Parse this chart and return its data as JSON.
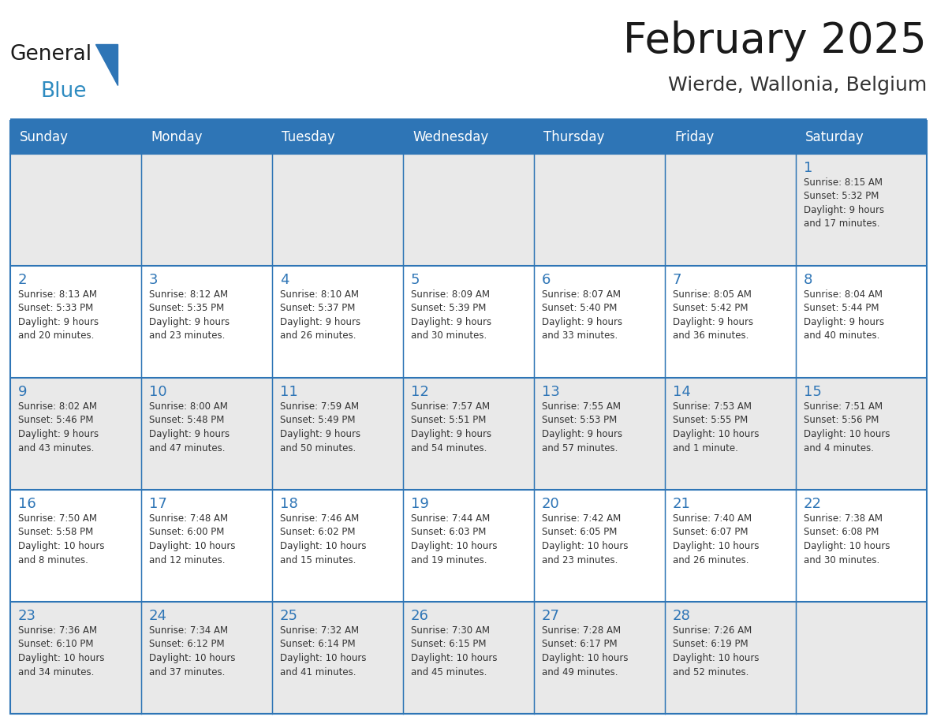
{
  "title": "February 2025",
  "subtitle": "Wierde, Wallonia, Belgium",
  "header_bg": "#2E75B6",
  "header_text_color": "#FFFFFF",
  "cell_bg_light": "#E9E9E9",
  "cell_bg_white": "#FFFFFF",
  "border_color": "#2E75B6",
  "title_color": "#1a1a1a",
  "subtitle_color": "#333333",
  "day_number_color": "#2E75B6",
  "cell_text_color": "#333333",
  "days_of_week": [
    "Sunday",
    "Monday",
    "Tuesday",
    "Wednesday",
    "Thursday",
    "Friday",
    "Saturday"
  ],
  "weeks": [
    [
      {
        "day": "",
        "info": ""
      },
      {
        "day": "",
        "info": ""
      },
      {
        "day": "",
        "info": ""
      },
      {
        "day": "",
        "info": ""
      },
      {
        "day": "",
        "info": ""
      },
      {
        "day": "",
        "info": ""
      },
      {
        "day": "1",
        "info": "Sunrise: 8:15 AM\nSunset: 5:32 PM\nDaylight: 9 hours\nand 17 minutes."
      }
    ],
    [
      {
        "day": "2",
        "info": "Sunrise: 8:13 AM\nSunset: 5:33 PM\nDaylight: 9 hours\nand 20 minutes."
      },
      {
        "day": "3",
        "info": "Sunrise: 8:12 AM\nSunset: 5:35 PM\nDaylight: 9 hours\nand 23 minutes."
      },
      {
        "day": "4",
        "info": "Sunrise: 8:10 AM\nSunset: 5:37 PM\nDaylight: 9 hours\nand 26 minutes."
      },
      {
        "day": "5",
        "info": "Sunrise: 8:09 AM\nSunset: 5:39 PM\nDaylight: 9 hours\nand 30 minutes."
      },
      {
        "day": "6",
        "info": "Sunrise: 8:07 AM\nSunset: 5:40 PM\nDaylight: 9 hours\nand 33 minutes."
      },
      {
        "day": "7",
        "info": "Sunrise: 8:05 AM\nSunset: 5:42 PM\nDaylight: 9 hours\nand 36 minutes."
      },
      {
        "day": "8",
        "info": "Sunrise: 8:04 AM\nSunset: 5:44 PM\nDaylight: 9 hours\nand 40 minutes."
      }
    ],
    [
      {
        "day": "9",
        "info": "Sunrise: 8:02 AM\nSunset: 5:46 PM\nDaylight: 9 hours\nand 43 minutes."
      },
      {
        "day": "10",
        "info": "Sunrise: 8:00 AM\nSunset: 5:48 PM\nDaylight: 9 hours\nand 47 minutes."
      },
      {
        "day": "11",
        "info": "Sunrise: 7:59 AM\nSunset: 5:49 PM\nDaylight: 9 hours\nand 50 minutes."
      },
      {
        "day": "12",
        "info": "Sunrise: 7:57 AM\nSunset: 5:51 PM\nDaylight: 9 hours\nand 54 minutes."
      },
      {
        "day": "13",
        "info": "Sunrise: 7:55 AM\nSunset: 5:53 PM\nDaylight: 9 hours\nand 57 minutes."
      },
      {
        "day": "14",
        "info": "Sunrise: 7:53 AM\nSunset: 5:55 PM\nDaylight: 10 hours\nand 1 minute."
      },
      {
        "day": "15",
        "info": "Sunrise: 7:51 AM\nSunset: 5:56 PM\nDaylight: 10 hours\nand 4 minutes."
      }
    ],
    [
      {
        "day": "16",
        "info": "Sunrise: 7:50 AM\nSunset: 5:58 PM\nDaylight: 10 hours\nand 8 minutes."
      },
      {
        "day": "17",
        "info": "Sunrise: 7:48 AM\nSunset: 6:00 PM\nDaylight: 10 hours\nand 12 minutes."
      },
      {
        "day": "18",
        "info": "Sunrise: 7:46 AM\nSunset: 6:02 PM\nDaylight: 10 hours\nand 15 minutes."
      },
      {
        "day": "19",
        "info": "Sunrise: 7:44 AM\nSunset: 6:03 PM\nDaylight: 10 hours\nand 19 minutes."
      },
      {
        "day": "20",
        "info": "Sunrise: 7:42 AM\nSunset: 6:05 PM\nDaylight: 10 hours\nand 23 minutes."
      },
      {
        "day": "21",
        "info": "Sunrise: 7:40 AM\nSunset: 6:07 PM\nDaylight: 10 hours\nand 26 minutes."
      },
      {
        "day": "22",
        "info": "Sunrise: 7:38 AM\nSunset: 6:08 PM\nDaylight: 10 hours\nand 30 minutes."
      }
    ],
    [
      {
        "day": "23",
        "info": "Sunrise: 7:36 AM\nSunset: 6:10 PM\nDaylight: 10 hours\nand 34 minutes."
      },
      {
        "day": "24",
        "info": "Sunrise: 7:34 AM\nSunset: 6:12 PM\nDaylight: 10 hours\nand 37 minutes."
      },
      {
        "day": "25",
        "info": "Sunrise: 7:32 AM\nSunset: 6:14 PM\nDaylight: 10 hours\nand 41 minutes."
      },
      {
        "day": "26",
        "info": "Sunrise: 7:30 AM\nSunset: 6:15 PM\nDaylight: 10 hours\nand 45 minutes."
      },
      {
        "day": "27",
        "info": "Sunrise: 7:28 AM\nSunset: 6:17 PM\nDaylight: 10 hours\nand 49 minutes."
      },
      {
        "day": "28",
        "info": "Sunrise: 7:26 AM\nSunset: 6:19 PM\nDaylight: 10 hours\nand 52 minutes."
      },
      {
        "day": "",
        "info": ""
      }
    ]
  ],
  "logo_text_general": "General",
  "logo_text_blue": "Blue",
  "logo_color_general": "#1a1a1a",
  "logo_color_blue": "#2E8BC0",
  "logo_triangle_color": "#2E75B6",
  "fig_width": 11.88,
  "fig_height": 9.18,
  "dpi": 100
}
